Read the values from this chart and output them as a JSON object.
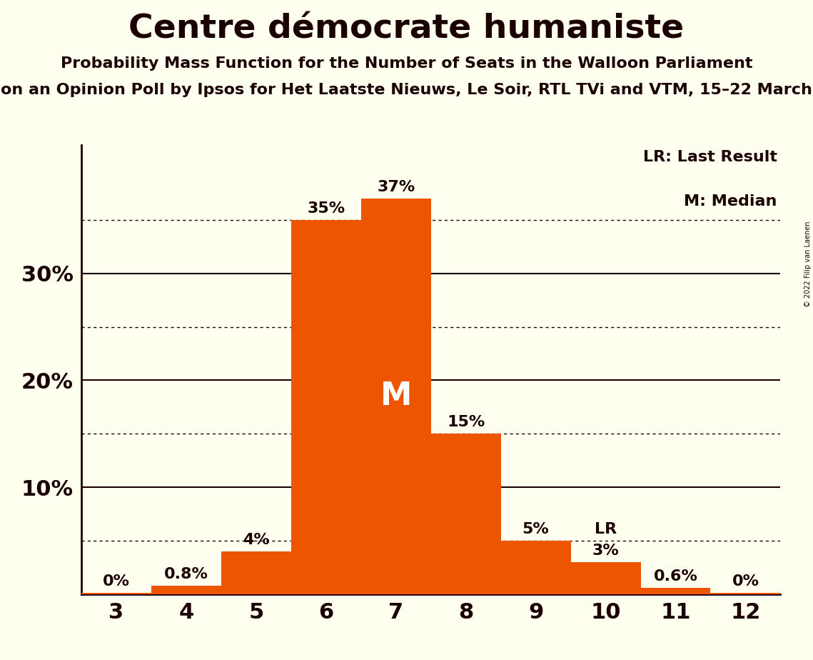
{
  "title": "Centre démocrate humaniste",
  "subtitle1": "Probability Mass Function for the Number of Seats in the Walloon Parliament",
  "subtitle2": "on an Opinion Poll by Ipsos for Het Laatste Nieuws, Le Soir, RTL TVi and VTM, 15–22 March",
  "copyright": "© 2022 Filip van Laenen",
  "categories": [
    3,
    4,
    5,
    6,
    7,
    8,
    9,
    10,
    11,
    12
  ],
  "values": [
    0.1,
    0.8,
    4.0,
    35.0,
    37.0,
    15.0,
    5.0,
    3.0,
    0.6,
    0.1
  ],
  "bar_color": "#ee5500",
  "background_color": "#fffff0",
  "axis_color": "#1a0000",
  "label_values": [
    "0%",
    "0.8%",
    "4%",
    "35%",
    "37%",
    "15%",
    "5%",
    "3%",
    "0.6%",
    "0%"
  ],
  "median_bar": 7,
  "lr_bar": 10,
  "ylim": [
    0,
    42
  ],
  "major_yticks": [
    10,
    20,
    30
  ],
  "major_ytick_labels": [
    "10%",
    "20%",
    "30%"
  ],
  "dotted_yticks": [
    5,
    15,
    25,
    35
  ],
  "legend_lr": "LR: Last Result",
  "legend_m": "M: Median",
  "bar_width": 1.0,
  "title_fontsize": 34,
  "subtitle_fontsize": 16,
  "tick_fontsize": 22,
  "label_fontsize": 16,
  "legend_fontsize": 16,
  "m_fontsize": 32
}
